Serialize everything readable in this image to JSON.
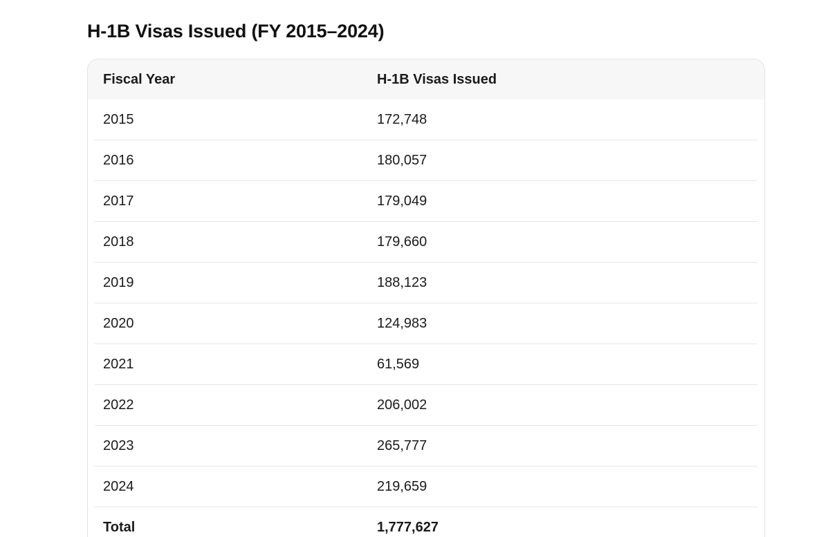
{
  "title": "H-1B Visas Issued (FY 2015–2024)",
  "table": {
    "headers": [
      "Fiscal Year",
      "H-1B Visas Issued"
    ],
    "rows": [
      {
        "year": "2015",
        "visas": "172,748"
      },
      {
        "year": "2016",
        "visas": "180,057"
      },
      {
        "year": "2017",
        "visas": "179,049"
      },
      {
        "year": "2018",
        "visas": "179,660"
      },
      {
        "year": "2019",
        "visas": "188,123"
      },
      {
        "year": "2020",
        "visas": "124,983"
      },
      {
        "year": "2021",
        "visas": "61,569"
      },
      {
        "year": "2022",
        "visas": "206,002"
      },
      {
        "year": "2023",
        "visas": "265,777"
      },
      {
        "year": "2024",
        "visas": "219,659"
      }
    ],
    "total": {
      "label": "Total",
      "visas": "1,777,627"
    }
  }
}
